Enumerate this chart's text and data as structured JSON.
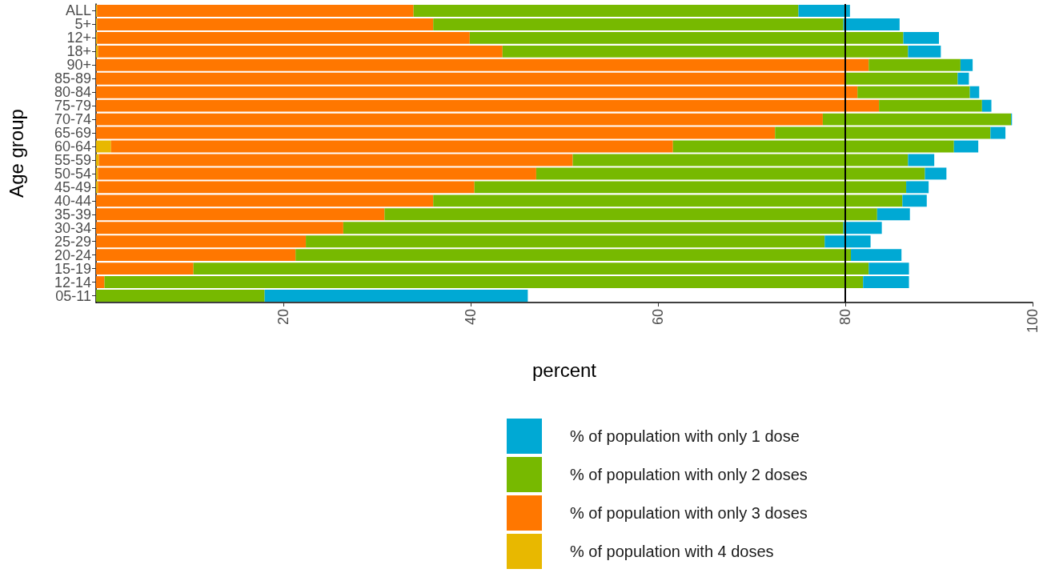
{
  "chart_data": {
    "type": "bar",
    "orientation": "horizontal",
    "stacked": true,
    "xlabel": "percent",
    "ylabel": "Age group",
    "categories": [
      "ALL",
      "5+",
      "12+",
      "18+",
      "90+",
      "85-89",
      "80-84",
      "75-79",
      "70-74",
      "65-69",
      "60-64",
      "55-59",
      "50-54",
      "45-49",
      "40-44",
      "35-39",
      "30-34",
      "25-29",
      "20-24",
      "15-19",
      "12-14",
      "05-11"
    ],
    "series": [
      {
        "name": "% of population with 4 doses",
        "color": "#e8b800",
        "values": [
          0.1,
          0.1,
          0.1,
          0.2,
          0,
          0,
          0,
          0,
          0,
          0,
          1.6,
          0.3,
          0.2,
          0.2,
          0,
          0,
          0,
          0,
          0,
          0,
          0,
          0
        ]
      },
      {
        "name": "% of population with only 3 doses",
        "color": "#ff7700",
        "values": [
          33.8,
          35.9,
          39.8,
          43.2,
          82.5,
          80.0,
          81.3,
          83.6,
          77.6,
          72.5,
          60.0,
          50.6,
          46.8,
          40.2,
          36.0,
          30.8,
          26.4,
          22.4,
          21.3,
          10.4,
          0.9,
          0
        ]
      },
      {
        "name": "% of population with only 2 doses",
        "color": "#77b900",
        "values": [
          41.1,
          43.8,
          46.3,
          43.3,
          9.8,
          12.0,
          12.0,
          11.0,
          20.1,
          23.0,
          30.0,
          35.8,
          41.5,
          46.1,
          50.1,
          52.6,
          53.4,
          55.4,
          59.3,
          72.1,
          81.0,
          18.0
        ]
      },
      {
        "name": "% of population with only 1 dose",
        "color": "#00a9d4",
        "values": [
          5.5,
          6.0,
          3.8,
          3.5,
          1.3,
          1.2,
          1.0,
          1.0,
          0.1,
          1.6,
          2.6,
          2.8,
          2.3,
          2.4,
          2.6,
          3.5,
          4.1,
          4.9,
          5.4,
          4.3,
          4.9,
          28.1
        ]
      }
    ],
    "xlim": [
      0,
      100
    ],
    "xticks": [
      20,
      40,
      60,
      80,
      100
    ],
    "ref_lines": [
      {
        "axis": "x",
        "value": 80,
        "color": "#000000"
      }
    ],
    "legend": "bottom"
  }
}
